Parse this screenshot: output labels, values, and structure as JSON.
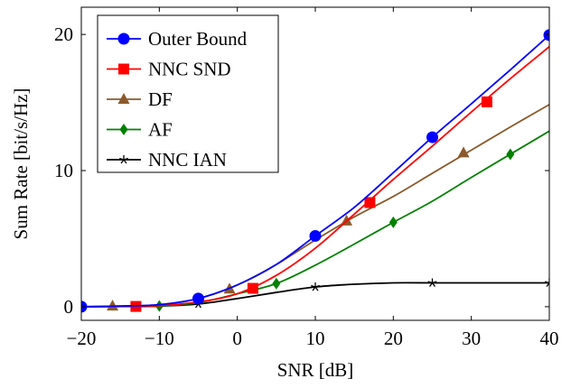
{
  "chart_data": {
    "type": "line",
    "xlabel": "SNR [dB]",
    "ylabel": "Sum Rate  [bit/s/Hz]",
    "xlim": [
      -20,
      40
    ],
    "ylim": [
      -1,
      22
    ],
    "xticks": [
      -20,
      -10,
      0,
      10,
      20,
      30,
      40
    ],
    "yticks": [
      0,
      10,
      20
    ],
    "xtick_labels": [
      "−20",
      "−10",
      "0",
      "10",
      "20",
      "30",
      "40"
    ],
    "ytick_labels": [
      "0",
      "10",
      "20"
    ],
    "grid": false,
    "legend_position": "top-left",
    "series": [
      {
        "name": "Outer Bound",
        "color": "#0000ff",
        "marker": "circle",
        "x": [
          -20,
          -15,
          -10,
          -5,
          0,
          5,
          10,
          15,
          20,
          25,
          30,
          35,
          40
        ],
        "y": [
          0.0,
          0.05,
          0.15,
          0.6,
          1.6,
          3.1,
          5.2,
          7.3,
          9.85,
          12.45,
          14.9,
          17.4,
          19.95
        ],
        "marker_x": [
          -20,
          -5,
          10,
          25,
          40
        ],
        "marker_y": [
          0.0,
          0.6,
          5.2,
          12.45,
          19.95
        ]
      },
      {
        "name": "NNC SND",
        "color": "#ff0000",
        "marker": "square",
        "x": [
          -20,
          -15,
          -10,
          -5,
          0,
          5,
          10,
          15,
          20,
          25,
          30,
          35,
          40
        ],
        "y": [
          0.0,
          0.02,
          0.08,
          0.35,
          0.95,
          2.3,
          4.3,
          6.8,
          9.35,
          11.8,
          14.3,
          16.75,
          19.1
        ],
        "marker_x": [
          -13,
          2,
          17,
          32
        ],
        "marker_y": [
          0.02,
          1.35,
          7.65,
          15.05
        ]
      },
      {
        "name": "DF",
        "color": "#8b5a2b",
        "marker": "triangle",
        "x": [
          -20,
          -15,
          -10,
          -5,
          0,
          5,
          10,
          15,
          20,
          25,
          30,
          35,
          40
        ],
        "y": [
          0.0,
          0.05,
          0.15,
          0.6,
          1.6,
          3.1,
          4.9,
          6.6,
          8.1,
          9.8,
          11.5,
          13.2,
          14.85
        ],
        "marker_x": [
          -16,
          -1,
          14,
          29
        ],
        "marker_y": [
          0.05,
          1.3,
          6.3,
          11.3
        ]
      },
      {
        "name": "AF",
        "color": "#008000",
        "marker": "diamond",
        "x": [
          -20,
          -15,
          -10,
          -5,
          0,
          5,
          10,
          15,
          20,
          25,
          30,
          35,
          40
        ],
        "y": [
          0.0,
          0.02,
          0.05,
          0.3,
          0.95,
          1.7,
          3.05,
          4.6,
          6.2,
          7.75,
          9.5,
          11.2,
          12.9
        ],
        "marker_x": [
          -10,
          5,
          20,
          35
        ],
        "marker_y": [
          0.05,
          1.7,
          6.2,
          11.2
        ]
      },
      {
        "name": "NNC IAN",
        "color": "#000000",
        "marker": "star",
        "x": [
          -20,
          -15,
          -10,
          -5,
          0,
          5,
          10,
          15,
          20,
          25,
          30,
          35,
          40
        ],
        "y": [
          0.0,
          0.01,
          0.04,
          0.2,
          0.6,
          1.05,
          1.45,
          1.65,
          1.75,
          1.75,
          1.75,
          1.75,
          1.75
        ],
        "marker_x": [
          -5,
          10,
          25,
          40
        ],
        "marker_y": [
          0.2,
          1.45,
          1.75,
          1.75
        ]
      }
    ]
  }
}
